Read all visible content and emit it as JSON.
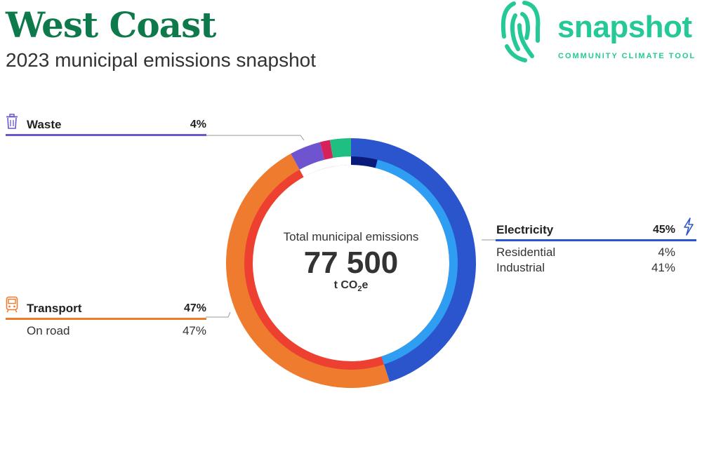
{
  "title": "West Coast",
  "subtitle": "2023 municipal emissions snapshot",
  "logo": {
    "word": "snapshot",
    "tagline": "COMMUNITY CLIMATE TOOL",
    "color": "#25c998"
  },
  "center": {
    "label": "Total municipal emissions",
    "value": "77 500",
    "unit_prefix": "t CO",
    "unit_sub": "2",
    "unit_suffix": "e"
  },
  "categories": {
    "waste": {
      "name": "Waste",
      "pct": "4%",
      "icon": "trash-icon",
      "color": "#6e55cf"
    },
    "transport": {
      "name": "Transport",
      "pct": "47%",
      "icon": "train-icon",
      "color": "#ef7b2e",
      "subs": [
        {
          "name": "On road",
          "pct": "47%"
        }
      ]
    },
    "electricity": {
      "name": "Electricity",
      "pct": "45%",
      "icon": "lightning-icon",
      "color": "#2a55cc",
      "subs": [
        {
          "name": "Residential",
          "pct": "4%"
        },
        {
          "name": "Industrial",
          "pct": "41%"
        }
      ]
    }
  },
  "chart_data": {
    "type": "pie",
    "total": 77500,
    "unit": "t CO2e",
    "outer": [
      {
        "name": "Electricity",
        "value": 45,
        "color": "#2a55cc"
      },
      {
        "name": "Transport",
        "value": 47,
        "color": "#ef7b2e"
      },
      {
        "name": "Waste",
        "value": 4,
        "color": "#6e55cf"
      },
      {
        "value": 1.3,
        "color": "#d6225a"
      },
      {
        "value": 2.7,
        "color": "#1fbf82"
      }
    ],
    "inner": [
      {
        "name": "Residential",
        "value": 4,
        "color": "#0a1a7a"
      },
      {
        "name": "Industrial",
        "value": 41,
        "color": "#2e9df2"
      },
      {
        "name": "On road",
        "value": 47,
        "color": "#ee4030"
      },
      {
        "value": 8,
        "color": "#ffffff"
      }
    ]
  }
}
